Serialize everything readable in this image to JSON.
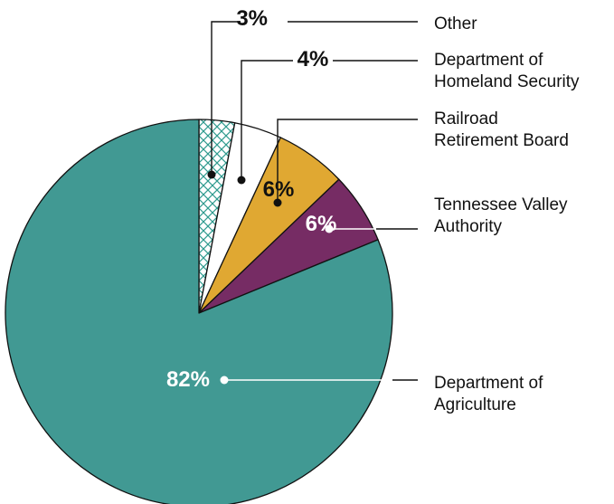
{
  "chart_data": {
    "type": "pie",
    "title": "",
    "slices": [
      {
        "label": "Other",
        "label_lines": [
          "Other"
        ],
        "value": 3,
        "percent_label": "3%",
        "color": "#2e9a8e",
        "pattern": "crosshatch"
      },
      {
        "label": "Department of Homeland Security",
        "label_lines": [
          "Department of",
          "Homeland Security"
        ],
        "value": 4,
        "percent_label": "4%",
        "color": "#ffffff"
      },
      {
        "label": "Railroad Retirement Board",
        "label_lines": [
          "Railroad",
          "Retirement Board"
        ],
        "value": 6,
        "percent_label": "6%",
        "color": "#e0a832"
      },
      {
        "label": "Tennessee Valley Authority",
        "label_lines": [
          "Tennessee Valley",
          "Authority"
        ],
        "value": 6,
        "percent_label": "6%",
        "color": "#762c64"
      },
      {
        "label": "Department of Agriculture",
        "label_lines": [
          "Department of",
          "Agriculture"
        ],
        "value": 82,
        "percent_label": "82%",
        "color": "#419993"
      }
    ]
  }
}
